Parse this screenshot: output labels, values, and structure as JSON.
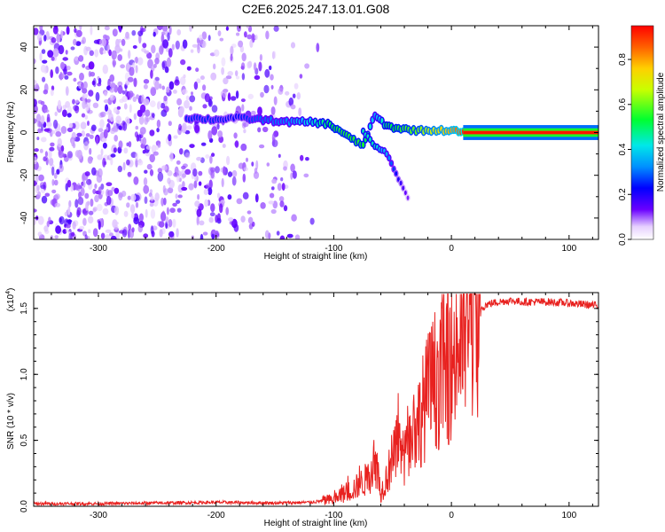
{
  "title": "C2E6.2025.247.13.01.G08",
  "chart_data": [
    {
      "type": "heatmap",
      "xlabel": "Height of straight line (km)",
      "ylabel": "Frequency (Hz)",
      "xlim": [
        -355,
        125
      ],
      "ylim": [
        -50,
        50
      ],
      "xticks": [
        -300,
        -200,
        -100,
        0,
        100
      ],
      "yticks": [
        -40,
        -20,
        0,
        20,
        40
      ],
      "colorbar": {
        "label": "Normalized spectral amplitude",
        "range": [
          0.0,
          0.95
        ],
        "ticks": [
          "0.0",
          "0.2",
          "0.4",
          "0.6",
          "0.8"
        ],
        "tick_values": [
          0.0,
          0.2,
          0.4,
          0.6,
          0.8
        ]
      },
      "noise_region_x": [
        -355,
        -110
      ],
      "ridge": [
        {
          "x": -225,
          "f": 7,
          "a": 0.25
        },
        {
          "x": -200,
          "f": 6,
          "a": 0.25
        },
        {
          "x": -185,
          "f": 7,
          "a": 0.22
        },
        {
          "x": -160,
          "f": 6,
          "a": 0.3
        },
        {
          "x": -140,
          "f": 5,
          "a": 0.32
        },
        {
          "x": -120,
          "f": 5,
          "a": 0.42
        },
        {
          "x": -105,
          "f": 4,
          "a": 0.5
        },
        {
          "x": -95,
          "f": 1,
          "a": 0.55
        },
        {
          "x": -85,
          "f": -3,
          "a": 0.55
        },
        {
          "x": -75,
          "f": -6,
          "a": 0.55
        },
        {
          "x": -65,
          "f": 8,
          "a": 0.35
        },
        {
          "x": -55,
          "f": 3,
          "a": 0.5
        },
        {
          "x": -45,
          "f": 2,
          "a": 0.55
        },
        {
          "x": -30,
          "f": 1,
          "a": 0.6
        },
        {
          "x": -15,
          "f": 1,
          "a": 0.7
        },
        {
          "x": 0,
          "f": 1,
          "a": 0.8
        },
        {
          "x": 10,
          "f": 0,
          "a": 0.9
        },
        {
          "x": 125,
          "f": 0,
          "a": 0.93
        }
      ],
      "branch": [
        {
          "x": -75,
          "f": 0,
          "a": 0.45
        },
        {
          "x": -65,
          "f": -6,
          "a": 0.45
        },
        {
          "x": -55,
          "f": -10,
          "a": 0.35
        },
        {
          "x": -45,
          "f": -22,
          "a": 0.2
        },
        {
          "x": -35,
          "f": -32,
          "a": 0.1
        }
      ]
    },
    {
      "type": "line",
      "xlabel": "Height of straight line (km)",
      "ylabel": "SNR (10 * v/v)",
      "multiplier": "(x10",
      "multiplier_exp": "4",
      "multiplier_close": ")",
      "xlim": [
        -355,
        125
      ],
      "ylim": [
        0,
        1.62
      ],
      "xticks": [
        -300,
        -200,
        -100,
        0,
        100
      ],
      "yticks": [
        "0.0",
        "0.5",
        "1.0",
        "1.5"
      ],
      "ytick_values": [
        0.0,
        0.5,
        1.0,
        1.5
      ],
      "series": [
        {
          "name": "SNR",
          "color": "#e8211f",
          "x": [
            -355,
            -300,
            -250,
            -200,
            -150,
            -120,
            -100,
            -90,
            -80,
            -70,
            -65,
            -60,
            -55,
            -50,
            -45,
            -40,
            -35,
            -30,
            -25,
            -20,
            -15,
            -10,
            -5,
            0,
            5,
            10,
            15,
            20,
            25,
            30,
            40,
            50,
            60,
            80,
            100,
            125
          ],
          "y": [
            0.02,
            0.02,
            0.025,
            0.03,
            0.025,
            0.03,
            0.05,
            0.1,
            0.15,
            0.22,
            0.38,
            0.1,
            0.22,
            0.35,
            0.45,
            0.35,
            0.5,
            0.6,
            0.72,
            0.85,
            0.95,
            1.0,
            1.05,
            1.1,
            1.2,
            1.3,
            1.4,
            1.45,
            1.5,
            1.53,
            1.55,
            1.56,
            1.55,
            1.55,
            1.54,
            1.52
          ]
        }
      ]
    }
  ]
}
